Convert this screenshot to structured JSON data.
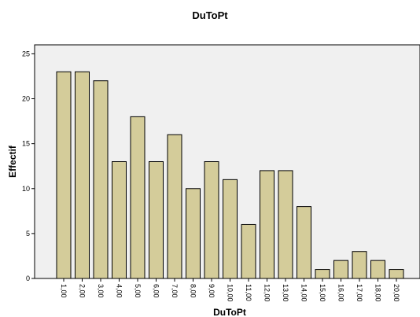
{
  "colors": {
    "plot_background": "#f0f0f0",
    "bar_fill": "#d4cc9a",
    "bar_stroke": "#000000"
  },
  "chart_data": {
    "type": "bar",
    "title": "DuToPt",
    "xlabel": "DuToPt",
    "ylabel": "Effectif",
    "categories": [
      "1,00",
      "2,00",
      "3,00",
      "4,00",
      "5,00",
      "6,00",
      "7,00",
      "8,00",
      "9,00",
      "10,00",
      "11,00",
      "12,00",
      "13,00",
      "14,00",
      "15,00",
      "16,00",
      "17,00",
      "18,00",
      "20,00"
    ],
    "values": [
      23,
      23,
      22,
      13,
      18,
      13,
      16,
      10,
      13,
      11,
      6,
      12,
      12,
      8,
      1,
      2,
      3,
      2,
      1
    ],
    "ylim": [
      0,
      26
    ],
    "yticks": [
      0,
      5,
      10,
      15,
      20,
      25
    ],
    "grid": false,
    "legend": "none"
  }
}
